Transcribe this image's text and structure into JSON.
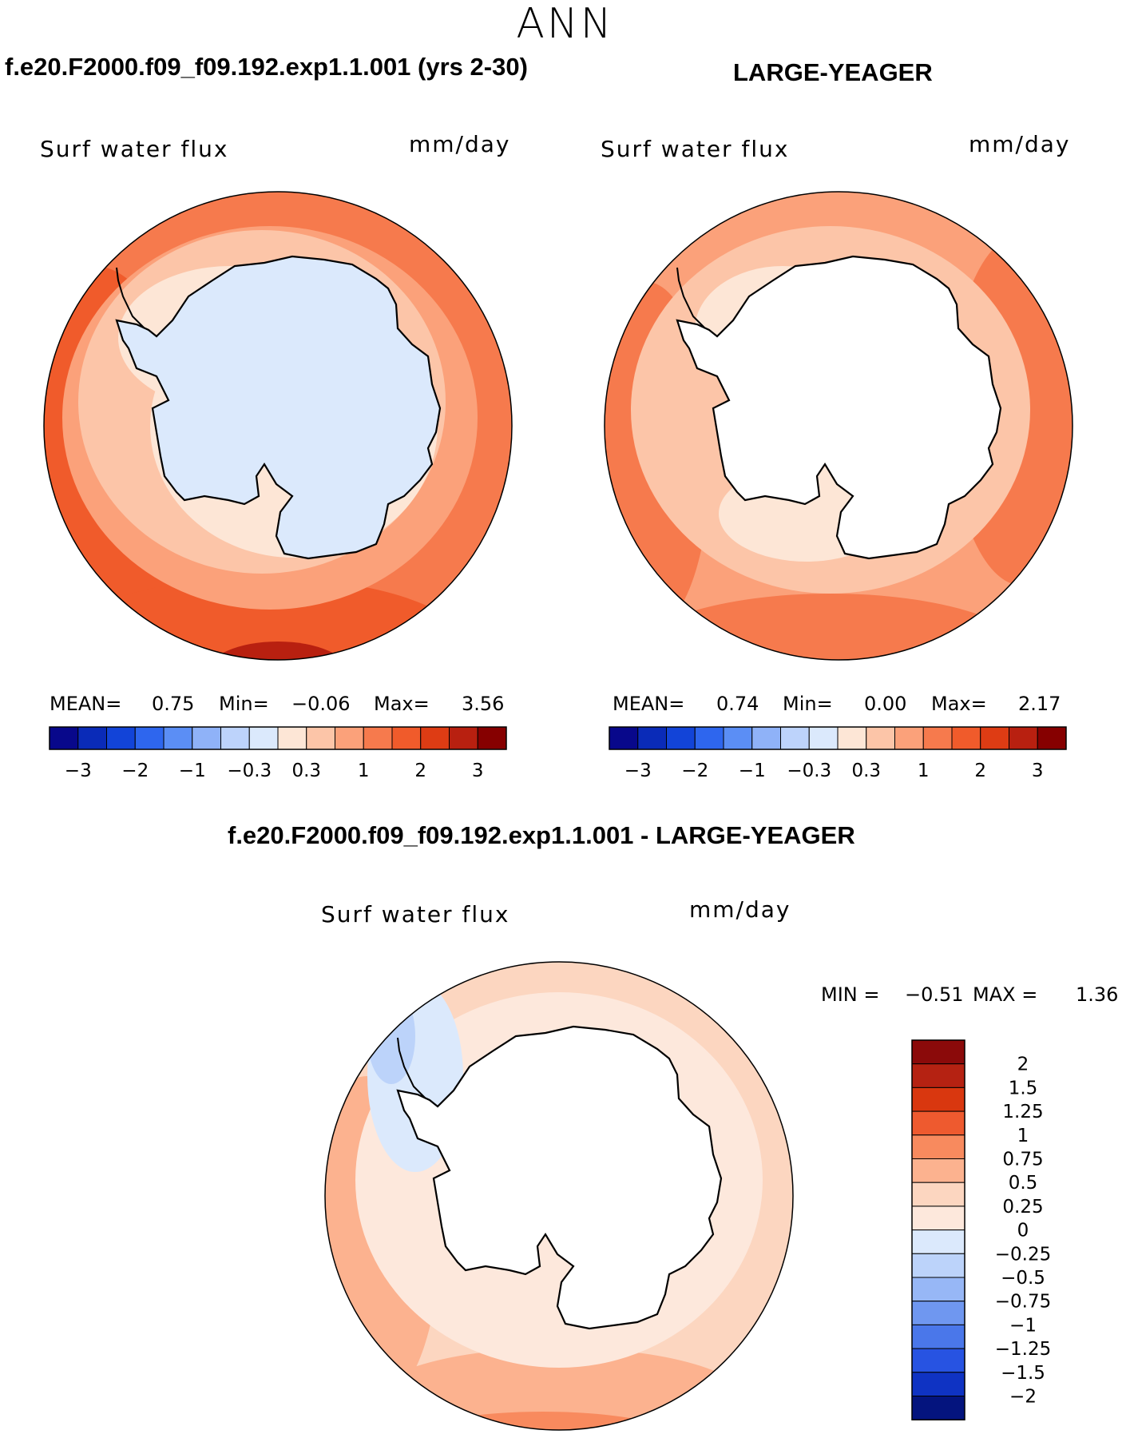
{
  "page": {
    "title": "ANN"
  },
  "panels": [
    {
      "case_title": "f.e20.F2000.f09_f09.192.exp1.1.001 (yrs 2-30)",
      "variable_label": "Surf water flux",
      "units": "mm/day",
      "stats": {
        "mean_label": "MEAN=",
        "mean": "0.75",
        "min_label": "Min=",
        "min": "−0.06",
        "max_label": "Max=",
        "max": "3.56"
      }
    },
    {
      "case_title": "LARGE-YEAGER",
      "variable_label": "Surf water flux",
      "units": "mm/day",
      "stats": {
        "mean_label": "MEAN=",
        "mean": "0.74",
        "min_label": "Min=",
        "min": "0.00",
        "max_label": "Max=",
        "max": "2.17"
      }
    },
    {
      "case_title": "f.e20.F2000.f09_f09.192.exp1.1.001 - LARGE-YEAGER",
      "variable_label": "Surf water flux",
      "units": "mm/day",
      "stats": {
        "min_label": "MIN =",
        "min": "−0.51",
        "max_label": "MAX =",
        "max": "1.36"
      }
    }
  ],
  "chart_data": [
    {
      "type": "heatmap",
      "projection": "south polar stereographic",
      "title": "f.e20.F2000.f09_f09.192.exp1.1.001 (yrs 2-30)",
      "variable": "Surf water flux",
      "units": "mm/day",
      "mean": 0.75,
      "min": -0.06,
      "max": 3.56,
      "colorbar": {
        "orientation": "horizontal",
        "boundaries": [
          -4,
          -3,
          -2.5,
          -2,
          -1.5,
          -1,
          -0.5,
          -0.3,
          0,
          0.3,
          0.5,
          1,
          1.5,
          2,
          2.5,
          3,
          4
        ],
        "colors": [
          "#08088b",
          "#0a2bb8",
          "#1244d8",
          "#2e66ee",
          "#5b8ef5",
          "#8fb2f8",
          "#bdd3fb",
          "#dbe9fc",
          "#fde6d6",
          "#fcc5a8",
          "#fba17a",
          "#f67a4d",
          "#f05b2b",
          "#de3c14",
          "#b82010",
          "#860000"
        ],
        "tick_labels": [
          "−3",
          "−2",
          "−1",
          "−0.3",
          "0.3",
          "1",
          "2",
          "3"
        ]
      }
    },
    {
      "type": "heatmap",
      "projection": "south polar stereographic",
      "title": "LARGE-YEAGER",
      "variable": "Surf water flux",
      "units": "mm/day",
      "mean": 0.74,
      "min": 0.0,
      "max": 2.17,
      "colorbar": {
        "orientation": "horizontal",
        "boundaries": [
          -4,
          -3,
          -2.5,
          -2,
          -1.5,
          -1,
          -0.5,
          -0.3,
          0,
          0.3,
          0.5,
          1,
          1.5,
          2,
          2.5,
          3,
          4
        ],
        "colors": [
          "#08088b",
          "#0a2bb8",
          "#1244d8",
          "#2e66ee",
          "#5b8ef5",
          "#8fb2f8",
          "#bdd3fb",
          "#dbe9fc",
          "#fde6d6",
          "#fcc5a8",
          "#fba17a",
          "#f67a4d",
          "#f05b2b",
          "#de3c14",
          "#b82010",
          "#860000"
        ],
        "tick_labels": [
          "−3",
          "−2",
          "−1",
          "−0.3",
          "0.3",
          "1",
          "2",
          "3"
        ]
      }
    },
    {
      "type": "heatmap",
      "projection": "south polar stereographic",
      "title": "f.e20.F2000.f09_f09.192.exp1.1.001 - LARGE-YEAGER",
      "variable": "Surf water flux",
      "units": "mm/day",
      "min": -0.51,
      "max": 1.36,
      "colorbar": {
        "orientation": "vertical",
        "tick_labels": [
          "2",
          "1.5",
          "1.25",
          "1",
          "0.75",
          "0.5",
          "0.25",
          "0",
          "−0.25",
          "−0.5",
          "−0.75",
          "−1",
          "−1.25",
          "−1.5",
          "−2"
        ],
        "colors": [
          "#8b0a0a",
          "#b52212",
          "#d9370f",
          "#ee5a2f",
          "#f88a5e",
          "#fcb28f",
          "#fcd6c0",
          "#fde8dc",
          "#dbe9fc",
          "#bcd3fa",
          "#97b7f6",
          "#6f97f0",
          "#4a77ea",
          "#2753e2",
          "#0f33c3",
          "#04147e"
        ]
      }
    }
  ]
}
